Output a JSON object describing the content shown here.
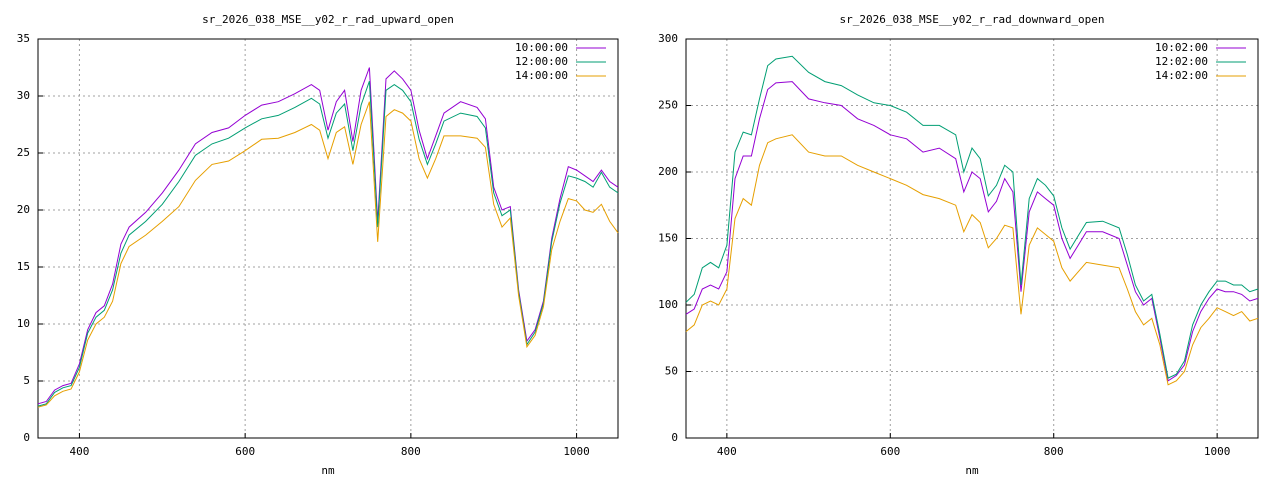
{
  "chart_data": [
    {
      "type": "line",
      "title": "sr_2026_038_MSE__y02_r_rad_upward_open",
      "x_label": "nm",
      "x": [
        350,
        360,
        370,
        380,
        390,
        400,
        410,
        420,
        430,
        440,
        450,
        460,
        480,
        500,
        520,
        540,
        560,
        580,
        600,
        620,
        640,
        660,
        680,
        690,
        700,
        710,
        720,
        730,
        740,
        750,
        760,
        770,
        780,
        790,
        800,
        810,
        820,
        830,
        840,
        860,
        880,
        890,
        900,
        910,
        920,
        930,
        940,
        950,
        960,
        970,
        980,
        990,
        1000,
        1010,
        1020,
        1030,
        1040,
        1050
      ],
      "xlim": [
        350,
        1050
      ],
      "xticks": [
        400,
        600,
        800,
        1000
      ],
      "ylim": [
        0,
        35
      ],
      "yticks": [
        0,
        5,
        10,
        15,
        20,
        25,
        30,
        35
      ],
      "grid": true,
      "legend": "top-right",
      "series": [
        {
          "name": "10:00:00",
          "color": "#9400d3",
          "values": [
            3.0,
            3.2,
            4.2,
            4.6,
            4.8,
            6.5,
            9.5,
            11,
            11.6,
            13.5,
            17,
            18.5,
            19.8,
            21.5,
            23.5,
            25.8,
            26.8,
            27.2,
            28.3,
            29.2,
            29.5,
            30.2,
            31,
            30.5,
            27,
            29.5,
            30.5,
            26,
            30.5,
            32.5,
            19,
            31.5,
            32.2,
            31.5,
            30.5,
            27,
            24.5,
            26.5,
            28.5,
            29.5,
            29,
            28,
            22,
            20,
            20.3,
            13,
            8.5,
            9.5,
            12,
            17.5,
            21,
            23.8,
            23.5,
            23,
            22.5,
            23.5,
            22.5,
            22
          ]
        },
        {
          "name": "12:00:00",
          "color": "#009e73",
          "values": [
            2.8,
            3.0,
            4.0,
            4.4,
            4.6,
            6.2,
            9.2,
            10.6,
            11.2,
            13,
            16.2,
            17.8,
            19,
            20.5,
            22.5,
            24.8,
            25.8,
            26.3,
            27.2,
            28,
            28.3,
            29,
            29.8,
            29.3,
            26.3,
            28.5,
            29.3,
            25.2,
            29.2,
            31.3,
            18.5,
            30.5,
            31,
            30.5,
            29.5,
            26.2,
            24,
            25.8,
            27.8,
            28.5,
            28.2,
            27.2,
            21.5,
            19.5,
            20,
            12.8,
            8.2,
            9.3,
            11.8,
            17.2,
            20.6,
            23,
            22.8,
            22.5,
            22,
            23.3,
            22,
            21.5
          ]
        },
        {
          "name": "14:00:00",
          "color": "#e69f00",
          "values": [
            2.7,
            2.9,
            3.7,
            4.1,
            4.3,
            5.8,
            8.6,
            10,
            10.6,
            12,
            15.3,
            16.8,
            17.8,
            19,
            20.3,
            22.6,
            24,
            24.3,
            25.2,
            26.2,
            26.3,
            26.8,
            27.5,
            27,
            24.5,
            26.8,
            27.3,
            24,
            27.5,
            29.5,
            17.2,
            28.2,
            28.8,
            28.5,
            27.8,
            24.5,
            22.8,
            24.5,
            26.5,
            26.5,
            26.3,
            25.5,
            20.5,
            18.5,
            19.3,
            12.5,
            8,
            9,
            11.5,
            16.5,
            19,
            21,
            20.8,
            20,
            19.8,
            20.5,
            19,
            18
          ]
        }
      ]
    },
    {
      "type": "line",
      "title": "sr_2026_038_MSE__y02_r_rad_downward_open",
      "x_label": "nm",
      "x": [
        350,
        360,
        370,
        380,
        390,
        400,
        410,
        420,
        430,
        440,
        450,
        460,
        480,
        500,
        520,
        540,
        560,
        580,
        600,
        620,
        640,
        660,
        680,
        690,
        700,
        710,
        720,
        730,
        740,
        750,
        760,
        770,
        780,
        790,
        800,
        810,
        820,
        830,
        840,
        860,
        880,
        890,
        900,
        910,
        920,
        930,
        940,
        950,
        960,
        970,
        980,
        990,
        1000,
        1010,
        1020,
        1030,
        1040,
        1050
      ],
      "xlim": [
        350,
        1050
      ],
      "xticks": [
        400,
        600,
        800,
        1000
      ],
      "ylim": [
        0,
        300
      ],
      "yticks": [
        0,
        50,
        100,
        150,
        200,
        250,
        300
      ],
      "grid": true,
      "legend": "top-right",
      "series": [
        {
          "name": "10:02:00",
          "color": "#9400d3",
          "values": [
            93,
            97,
            112,
            115,
            112,
            125,
            195,
            212,
            212,
            240,
            262,
            267,
            268,
            255,
            252,
            250,
            240,
            235,
            228,
            225,
            215,
            218,
            210,
            185,
            200,
            195,
            170,
            178,
            195,
            185,
            110,
            170,
            185,
            180,
            175,
            150,
            135,
            145,
            155,
            155,
            150,
            130,
            110,
            100,
            105,
            75,
            43,
            47,
            55,
            80,
            95,
            105,
            112,
            110,
            110,
            108,
            103,
            105
          ]
        },
        {
          "name": "12:02:00",
          "color": "#009e73",
          "values": [
            102,
            108,
            128,
            132,
            128,
            145,
            215,
            230,
            228,
            255,
            280,
            285,
            287,
            275,
            268,
            265,
            258,
            252,
            250,
            245,
            235,
            235,
            228,
            200,
            218,
            210,
            182,
            190,
            205,
            200,
            115,
            180,
            195,
            190,
            182,
            158,
            142,
            152,
            162,
            163,
            158,
            138,
            115,
            103,
            108,
            78,
            45,
            48,
            58,
            85,
            100,
            110,
            118,
            118,
            115,
            115,
            110,
            112
          ]
        },
        {
          "name": "14:02:00",
          "color": "#e69f00",
          "values": [
            80,
            85,
            100,
            103,
            100,
            112,
            165,
            180,
            175,
            205,
            222,
            225,
            228,
            215,
            212,
            212,
            205,
            200,
            195,
            190,
            183,
            180,
            175,
            155,
            168,
            162,
            143,
            150,
            160,
            158,
            93,
            145,
            158,
            153,
            148,
            128,
            118,
            125,
            132,
            130,
            128,
            112,
            95,
            85,
            90,
            70,
            40,
            43,
            50,
            70,
            83,
            90,
            98,
            95,
            92,
            95,
            88,
            90
          ]
        }
      ]
    }
  ]
}
